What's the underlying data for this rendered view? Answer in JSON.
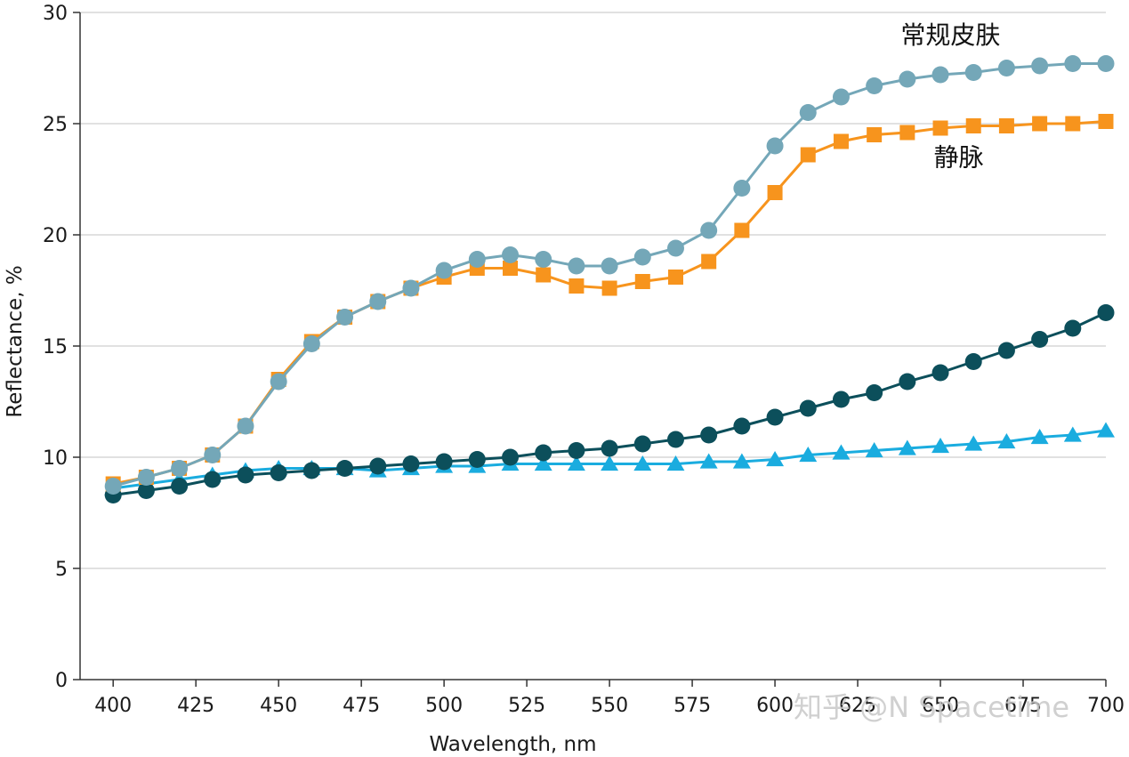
{
  "chart_data": {
    "type": "line",
    "xlabel": "Wavelength, nm",
    "ylabel": "Reflectance, %",
    "xlim": [
      390,
      700
    ],
    "ylim": [
      0,
      30
    ],
    "xticks": [
      400,
      425,
      450,
      475,
      500,
      525,
      550,
      575,
      600,
      625,
      650,
      675,
      700
    ],
    "yticks": [
      0,
      5,
      10,
      15,
      20,
      25,
      30
    ],
    "grid": "horizontal",
    "x": [
      400,
      410,
      420,
      430,
      440,
      450,
      460,
      470,
      480,
      490,
      500,
      510,
      520,
      530,
      540,
      550,
      560,
      570,
      580,
      590,
      600,
      610,
      620,
      630,
      640,
      650,
      660,
      670,
      680,
      690,
      700
    ],
    "series": [
      {
        "name": "静脉",
        "color": "#f7941d",
        "marker": "square",
        "values": [
          8.8,
          9.1,
          9.5,
          10.1,
          11.4,
          13.5,
          15.2,
          16.3,
          17.0,
          17.6,
          18.1,
          18.5,
          18.5,
          18.2,
          17.7,
          17.6,
          17.9,
          18.1,
          18.8,
          20.2,
          21.9,
          23.6,
          24.2,
          24.5,
          24.6,
          24.8,
          24.9,
          24.9,
          25.0,
          25.0,
          25.1
        ]
      },
      {
        "name": "常规皮肤",
        "color": "#74a7b8",
        "marker": "circle",
        "values": [
          8.7,
          9.1,
          9.5,
          10.1,
          11.4,
          13.4,
          15.1,
          16.3,
          17.0,
          17.6,
          18.4,
          18.9,
          19.1,
          18.9,
          18.6,
          18.6,
          19.0,
          19.4,
          20.2,
          22.1,
          24.0,
          25.5,
          26.2,
          26.7,
          27.0,
          27.2,
          27.3,
          27.5,
          27.6,
          27.7,
          27.7
        ]
      },
      {
        "name": "",
        "color": "#1aacdf",
        "marker": "triangle",
        "values": [
          8.6,
          8.8,
          9.0,
          9.2,
          9.4,
          9.5,
          9.5,
          9.5,
          9.4,
          9.5,
          9.6,
          9.6,
          9.7,
          9.7,
          9.7,
          9.7,
          9.7,
          9.7,
          9.8,
          9.8,
          9.9,
          10.1,
          10.2,
          10.3,
          10.4,
          10.5,
          10.6,
          10.7,
          10.9,
          11.0,
          11.2
        ]
      },
      {
        "name": "",
        "color": "#0c4f5b",
        "marker": "circle",
        "values": [
          8.3,
          8.5,
          8.7,
          9.0,
          9.2,
          9.3,
          9.4,
          9.5,
          9.6,
          9.7,
          9.8,
          9.9,
          10.0,
          10.2,
          10.3,
          10.4,
          10.6,
          10.8,
          11.0,
          11.4,
          11.8,
          12.2,
          12.6,
          12.9,
          13.4,
          13.8,
          14.3,
          14.8,
          15.3,
          15.8,
          16.5
        ]
      }
    ],
    "annotations": [
      {
        "text": "常规皮肤",
        "x": 638,
        "y": 28.6
      },
      {
        "text": "静脉",
        "x": 648,
        "y": 23.1
      }
    ]
  },
  "watermark": "知乎 @N Spacetime",
  "colors": {
    "grid": "#d7d7d7",
    "axis": "#333333"
  }
}
